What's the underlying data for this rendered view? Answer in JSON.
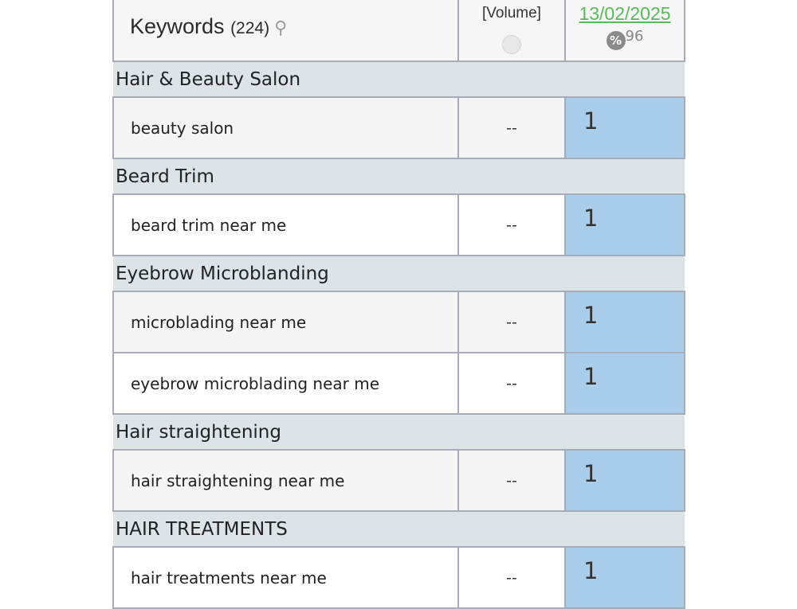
{
  "header": {
    "keywords_label": "Keywords",
    "count": "(224)",
    "search_icon": "search-icon",
    "volume_label": "[Volume]",
    "globe_icon": "globe-icon",
    "date": "13/02/2025",
    "percent_icon": "percent-icon",
    "percent_value": "96"
  },
  "groups": [
    {
      "name": "Hair & Beauty Salon",
      "rows": [
        {
          "keyword": "beauty salon",
          "volume": "--",
          "rank": "1"
        }
      ]
    },
    {
      "name": "Beard Trim",
      "rows": [
        {
          "keyword": "beard trim near me",
          "volume": "--",
          "rank": "1"
        }
      ]
    },
    {
      "name": "Eyebrow Microblanding",
      "rows": [
        {
          "keyword": "microblading near me",
          "volume": "--",
          "rank": "1"
        },
        {
          "keyword": "eyebrow microblading near me",
          "volume": "--",
          "rank": "1"
        }
      ]
    },
    {
      "name": "Hair straightening",
      "rows": [
        {
          "keyword": "hair straightening near me",
          "volume": "--",
          "rank": "1"
        }
      ]
    },
    {
      "name": "HAIR TREATMENTS",
      "rows": [
        {
          "keyword": "hair treatments near me",
          "volume": "--",
          "rank": "1"
        }
      ]
    }
  ],
  "colors": {
    "rank_bg": "#a9cdea",
    "group_bg": "#dde4e8",
    "date_link": "#5cb85c"
  }
}
